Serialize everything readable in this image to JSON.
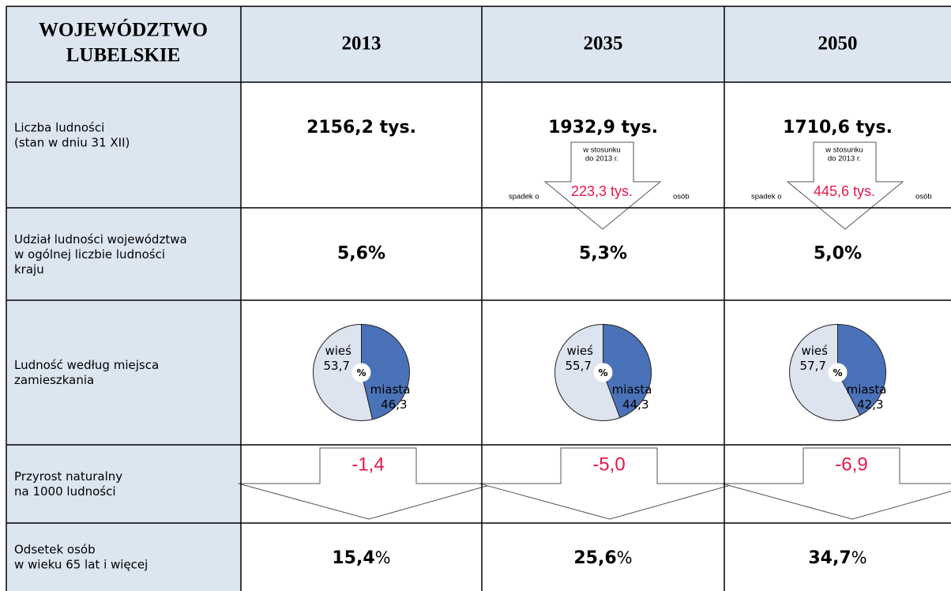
{
  "header": {
    "title_lines": [
      "WOJEWÓDZTWO",
      "LUBELSKIE"
    ],
    "years": [
      "2013",
      "2035",
      "2050"
    ]
  },
  "rows": [
    {
      "label_lines": [
        "Liczba ludności",
        "(stan w dniu 31 XII)"
      ],
      "cells": [
        {
          "value": "2156,2 tys."
        },
        {
          "value": "1932,9 tys.",
          "note_lines": [
            "w stosunku",
            "do 2013 r."
          ],
          "prefix": "spadek o",
          "change": "223,3 tys.",
          "suffix": "osób"
        },
        {
          "value": "1710,6 tys.",
          "note_lines": [
            "w stosunku",
            "do 2013 r."
          ],
          "prefix": "spadek o",
          "change": "445,6 tys.",
          "suffix": "osób"
        }
      ]
    },
    {
      "label_lines": [
        "Udział ludności województwa",
        "w ogólnej liczbie ludności",
        "kraju"
      ],
      "cells": [
        "5,6%",
        "5,3%",
        "5,0%"
      ]
    },
    {
      "label_lines": [
        "Ludność według miejsca",
        "zamieszkania"
      ],
      "pies": [
        {
          "labels": [
            "wieś",
            "miasta"
          ],
          "values": [
            53.7,
            46.3
          ],
          "value_labels": [
            "53,7",
            "46,3"
          ],
          "center": "%"
        },
        {
          "labels": [
            "wieś",
            "miasta"
          ],
          "values": [
            55.7,
            44.3
          ],
          "value_labels": [
            "55,7",
            "44,3"
          ],
          "center": "%"
        },
        {
          "labels": [
            "wieś",
            "miasta"
          ],
          "values": [
            57.7,
            42.3
          ],
          "value_labels": [
            "57,7",
            "42,3"
          ],
          "center": "%"
        }
      ],
      "colors": [
        "#dde3ef",
        "#4a72b8"
      ]
    },
    {
      "label_lines": [
        "Przyrost naturalny",
        "na 1000  ludności"
      ],
      "cells": [
        "-1,4",
        "-5,0",
        "-6,9"
      ]
    },
    {
      "label_lines": [
        "Odsetek osób",
        "w wieku 65 lat i więcej"
      ],
      "cells": [
        {
          "value": "15,4",
          "unit": "%"
        },
        {
          "value": "25,6",
          "unit": "%"
        },
        {
          "value": "34,7",
          "unit": "%"
        }
      ]
    }
  ]
}
